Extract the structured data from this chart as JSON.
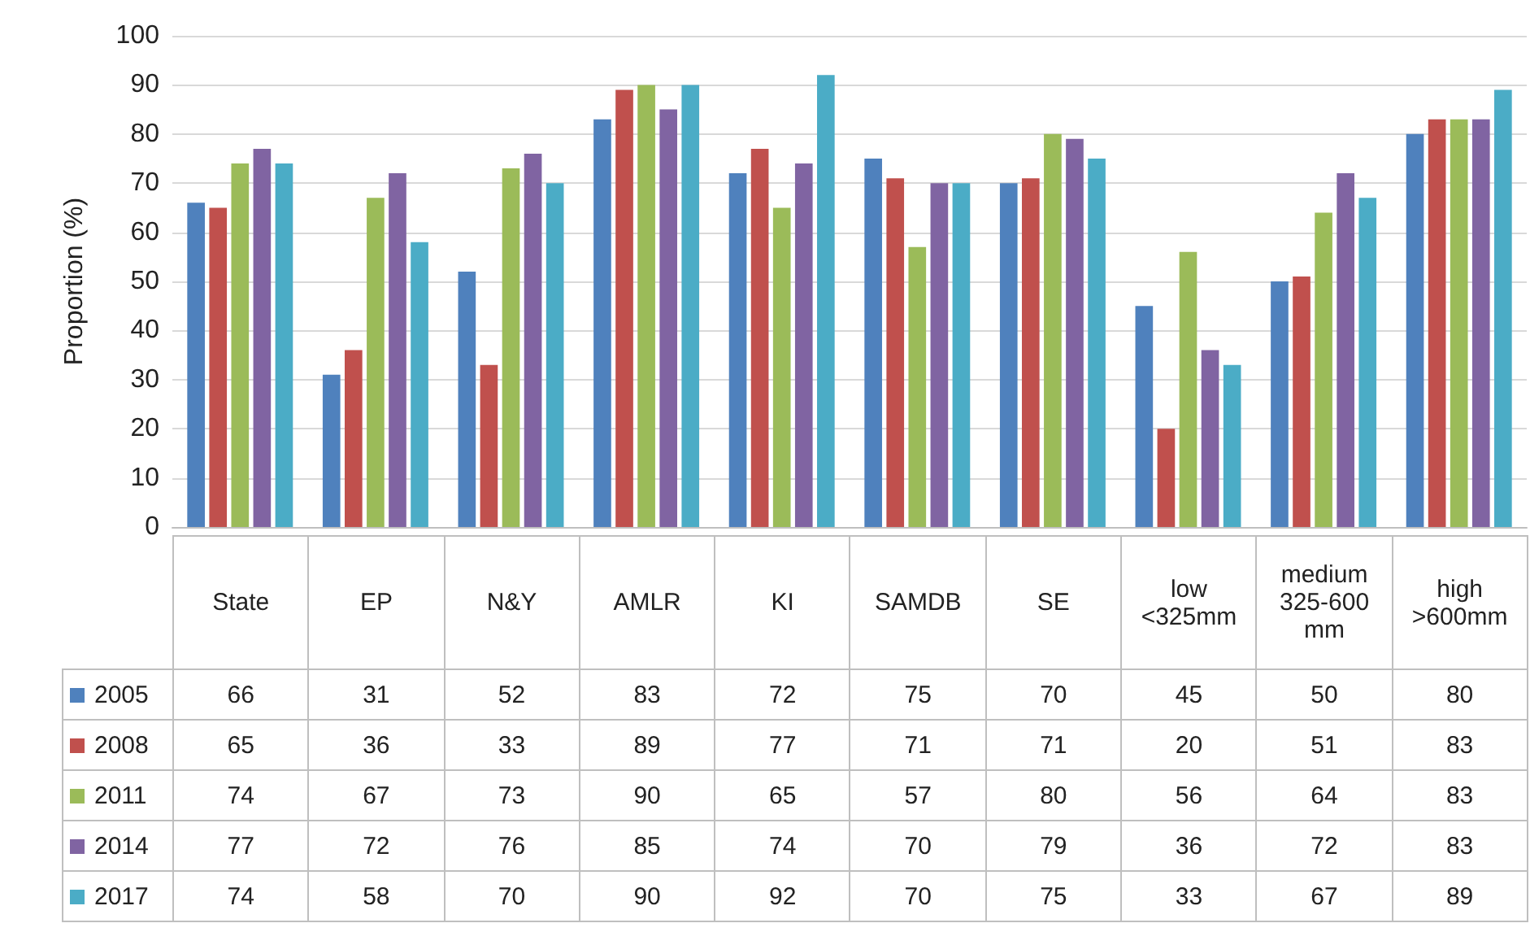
{
  "chart_data": {
    "type": "bar",
    "ylabel": "Proportion (%)",
    "categories": [
      "State",
      "EP",
      "N&Y",
      "AMLR",
      "KI",
      "SAMDB",
      "SE",
      "low <325mm",
      "medium 325-600 mm",
      "high >600mm"
    ],
    "series": [
      {
        "name": "2005",
        "color": "#4f81bd",
        "values": [
          66,
          31,
          52,
          83,
          72,
          75,
          70,
          45,
          50,
          80
        ]
      },
      {
        "name": "2008",
        "color": "#c0504d",
        "values": [
          65,
          36,
          33,
          89,
          77,
          71,
          71,
          20,
          51,
          83
        ]
      },
      {
        "name": "2011",
        "color": "#9bbb59",
        "values": [
          74,
          67,
          73,
          90,
          65,
          57,
          80,
          56,
          64,
          83
        ]
      },
      {
        "name": "2014",
        "color": "#8064a2",
        "values": [
          77,
          72,
          76,
          85,
          74,
          70,
          79,
          36,
          72,
          83
        ]
      },
      {
        "name": "2017",
        "color": "#4bacc6",
        "values": [
          74,
          58,
          70,
          90,
          92,
          70,
          75,
          33,
          67,
          89
        ]
      }
    ],
    "ylim": [
      0,
      100
    ],
    "yticks": [
      0,
      10,
      20,
      30,
      40,
      50,
      60,
      70,
      80,
      90,
      100
    ],
    "grid": "y",
    "legend": "bottom",
    "data_labels": true
  }
}
